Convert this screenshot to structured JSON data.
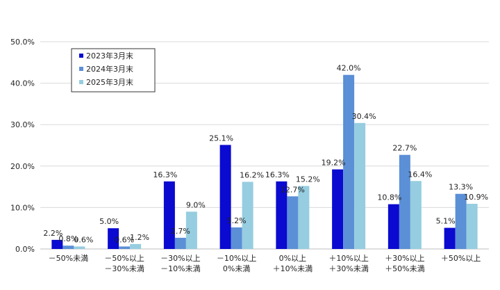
{
  "chart_data": {
    "type": "bar",
    "title": "",
    "xlabel": "",
    "ylabel": "",
    "ylim": [
      0,
      50
    ],
    "y_ticks": [
      "0.0%",
      "10.0%",
      "20.0%",
      "30.0%",
      "40.0%",
      "50.0%"
    ],
    "grid": true,
    "legend_position": "top-left",
    "categories": [
      [
        "－50%未満"
      ],
      [
        "－50%以上",
        "－30%未満"
      ],
      [
        "－30%以上",
        "－10%未満"
      ],
      [
        "－10%以上",
        "0%未満"
      ],
      [
        "0%以上",
        "＋10%未満"
      ],
      [
        "＋10%以上",
        "＋30%未満"
      ],
      [
        "＋30%以上",
        "＋50%未満"
      ],
      [
        "＋50%以上"
      ]
    ],
    "series": [
      {
        "name": "2023年3月末",
        "color": "#0a0ad0",
        "values": [
          2.2,
          5.0,
          16.3,
          25.1,
          16.3,
          19.2,
          10.8,
          5.1
        ],
        "labels": [
          "2.2%",
          "5.0%",
          "16.3%",
          "25.1%",
          "16.3%",
          "19.2%",
          "10.8%",
          "5.1%"
        ]
      },
      {
        "name": "2024年3月末",
        "color": "#5b8fd6",
        "values": [
          0.8,
          0.6,
          2.7,
          5.2,
          12.7,
          42.0,
          22.7,
          13.3
        ],
        "labels": [
          "0.8%",
          "0.6%",
          "2.7%",
          "5.2%",
          "12.7%",
          "42.0%",
          "22.7%",
          "13.3%"
        ]
      },
      {
        "name": "2025年3月末",
        "color": "#96cde0",
        "values": [
          0.6,
          1.2,
          9.0,
          16.2,
          15.2,
          30.4,
          16.4,
          10.9
        ],
        "labels": [
          "0.6%",
          "1.2%",
          "9.0%",
          "16.2%",
          "15.2%",
          "30.4%",
          "16.4%",
          "10.9%"
        ]
      }
    ]
  }
}
